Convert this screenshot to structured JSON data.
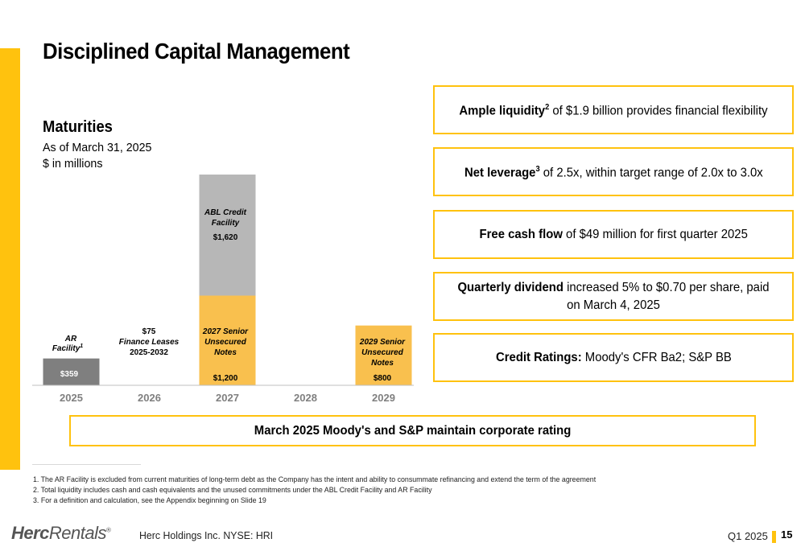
{
  "header": {
    "title": "Disciplined Capital Management"
  },
  "maturities": {
    "title": "Maturities",
    "subtitle_1": "As of March 31, 2025",
    "subtitle_2": "$ in millions"
  },
  "chart_data": {
    "type": "bar",
    "stacked": true,
    "categories": [
      "2025",
      "2026",
      "2027",
      "2028",
      "2029"
    ],
    "series": [
      {
        "name": "AR Facility",
        "color": "#7F7F7F",
        "values": [
          359,
          0,
          0,
          0,
          0
        ]
      },
      {
        "name": "Finance Leases 2025-2032",
        "color": "#FFFFFF",
        "values": [
          0,
          75,
          0,
          0,
          0
        ]
      },
      {
        "name": "2027 Senior Unsecured Notes",
        "color": "#F9C04E",
        "values": [
          0,
          0,
          1200,
          0,
          0
        ]
      },
      {
        "name": "ABL Credit Facility",
        "color": "#B7B7B7",
        "values": [
          0,
          0,
          1620,
          0,
          0
        ]
      },
      {
        "name": "2029 Senior Unsecured Notes",
        "color": "#F9C04E",
        "values": [
          0,
          0,
          0,
          0,
          800
        ]
      }
    ],
    "labels": {
      "ar": {
        "line1": "AR",
        "line2": "Facility",
        "sup": "1",
        "value": "$359"
      },
      "fl": {
        "value": "$75",
        "line1": "Finance Leases",
        "line2": "2025-2032"
      },
      "sn27": {
        "line1": "2027 Senior",
        "line2": "Unsecured",
        "line3": "Notes",
        "value": "$1,200"
      },
      "abl": {
        "line1": "ABL Credit",
        "line2": "Facility",
        "value": "$1,620"
      },
      "sn29": {
        "line1": "2029 Senior",
        "line2": "Unsecured",
        "line3": "Notes",
        "value": "$800"
      }
    },
    "ylim": [
      0,
      2820
    ],
    "grid": false,
    "legend": "none"
  },
  "callouts": [
    {
      "bold": "Ample liquidity",
      "sup": "2",
      "text": " of $1.9 billion provides financial flexibility"
    },
    {
      "bold": "Net leverage",
      "sup": "3",
      "text": " of 2.5x, within target range of 2.0x to 3.0x"
    },
    {
      "bold": "Free cash flow",
      "sup": "",
      "text": " of $49 million for first quarter 2025"
    },
    {
      "bold": "Quarterly dividend",
      "sup": "",
      "text": " increased 5% to $0.70 per share, paid on March 4, 2025"
    },
    {
      "bold": "Credit Ratings:",
      "sup": "",
      "text": " Moody's CFR Ba2; S&P BB"
    }
  ],
  "banner": "March 2025 Moody's and S&P maintain corporate rating",
  "footnotes": [
    "1. The AR Facility is excluded from current maturities of long-term debt as the Company has the intent and ability to consummate refinancing and extend the term of the agreement",
    "2. Total liquidity includes cash and cash equivalents and the unused commitments under the ABL Credit Facility and AR Facility",
    "3. For a definition and calculation, see the Appendix beginning on Slide 19"
  ],
  "footer": {
    "logo_bold": "Herc",
    "logo_rest": "Rentals",
    "logo_reg": "®",
    "company": "Herc Holdings Inc.  NYSE: HRI",
    "quarter": "Q1 2025",
    "page": "15"
  },
  "colors": {
    "accent": "#FFC20E",
    "notes": "#F9C04E",
    "abl": "#B7B7B7",
    "ar": "#7F7F7F"
  }
}
